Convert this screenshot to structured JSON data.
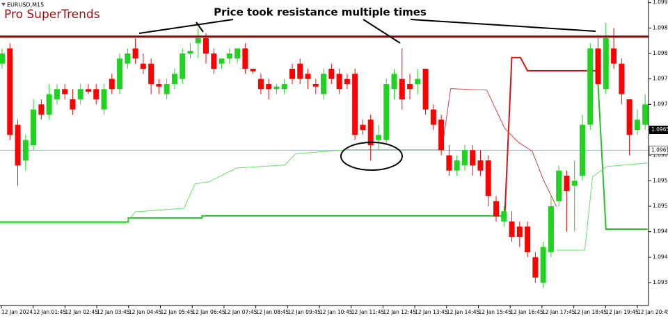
{
  "chart_data": {
    "type": "candlestick",
    "header": "EURUSD,M15",
    "title": "Pro SuperTrends",
    "annotation": "Price took resistance multiple times",
    "up_color": "#21d321",
    "down_color": "#ff0000",
    "ylim": [
      1.09305,
      1.09905
    ],
    "yticks": [
      {
        "value": 1.099,
        "label": "1.0990"
      },
      1.0985,
      {
        "value": 1.098,
        "label": "1.0980"
      },
      1.0975,
      {
        "value": 1.097,
        "label": "1.0970"
      },
      1.0965,
      {
        "value": 1.096,
        "label": "1.0960"
      },
      1.0955,
      {
        "value": 1.095,
        "label": "1.0950"
      },
      1.0945,
      {
        "value": 1.094,
        "label": "1.0940"
      },
      1.0935
    ],
    "xticks": [
      "12 Jan 2024",
      "12 Jan 01:45",
      "12 Jan 02:45",
      "12 Jan 03:45",
      "12 Jan 04:45",
      "12 Jan 05:45",
      "12 Jan 06:45",
      "12 Jan 07:45",
      "12 Jan 08:45",
      "12 Jan 09:45",
      "12 Jan 10:45",
      "12 Jan 11:45",
      "12 Jan 12:45",
      "12 Jan 13:45",
      "12 Jan 14:45",
      "12 Jan 15:45",
      "12 Jan 16:45",
      "12 Jan 17:45",
      "12 Jan 18:45",
      "12 Jan 19:45",
      "12 Jan 20:45"
    ],
    "resistance": {
      "value": 1.09833,
      "color": "#8b0000"
    },
    "hline": {
      "value": 1.0961,
      "color": "#9fb4c0"
    },
    "current_price": 1.0965,
    "ohlc": [
      [
        1.0978,
        1.0981,
        1.0977,
        1.098
      ],
      [
        1.0981,
        1.0982,
        1.0963,
        1.0964
      ],
      [
        1.0966,
        1.0967,
        1.0954,
        1.0958
      ],
      [
        1.0959,
        1.0964,
        1.0957,
        1.0963
      ],
      [
        1.0962,
        1.0971,
        1.0961,
        1.0969
      ],
      [
        1.097,
        1.0971,
        1.0967,
        1.0968
      ],
      [
        1.0968,
        1.0974,
        1.0967,
        1.0972
      ],
      [
        1.0971,
        1.0974,
        1.097,
        1.0973
      ],
      [
        1.0973,
        1.0974,
        1.0971,
        1.0972
      ],
      [
        1.0971,
        1.0973,
        1.0968,
        1.0969
      ],
      [
        1.0971,
        1.0974,
        1.097,
        1.0973
      ],
      [
        1.0973,
        1.0974,
        1.0972,
        1.09725
      ],
      [
        1.0973,
        1.0974,
        1.097,
        1.0971
      ],
      [
        1.0969,
        1.0974,
        1.0968,
        1.0973
      ],
      [
        1.0975,
        1.0976,
        1.0972,
        1.0973
      ],
      [
        1.0973,
        1.098,
        1.0972,
        1.0979
      ],
      [
        1.0978,
        1.0981,
        1.0977,
        1.098
      ],
      [
        1.0981,
        1.0983,
        1.0978,
        1.0979
      ],
      [
        1.0978,
        1.098,
        1.0976,
        1.0977
      ],
      [
        1.0978,
        1.0979,
        1.0972,
        1.0974
      ],
      [
        1.0974,
        1.0975,
        1.0972,
        1.09735
      ],
      [
        1.0972,
        1.0975,
        1.0971,
        1.0974
      ],
      [
        1.0974,
        1.0977,
        1.0973,
        1.0976
      ],
      [
        1.0975,
        1.0981,
        1.0974,
        1.098
      ],
      [
        1.098,
        1.0982,
        1.0979,
        1.09805
      ],
      [
        1.0982,
        1.0985,
        1.0979,
        1.0983
      ],
      [
        1.0983,
        1.0984,
        1.0978,
        1.098
      ],
      [
        1.098,
        1.0981,
        1.0976,
        1.0977
      ],
      [
        1.0978,
        1.0979,
        1.0977,
        1.0979
      ],
      [
        1.0979,
        1.0981,
        1.0978,
        1.098
      ],
      [
        1.0979,
        1.0981,
        1.0978,
        1.0981
      ],
      [
        1.0981,
        1.0982,
        1.0976,
        1.0977
      ],
      [
        1.0977,
        1.0977,
        1.0976,
        1.09765
      ],
      [
        1.0975,
        1.0976,
        1.0972,
        1.0973
      ],
      [
        1.0974,
        1.0975,
        1.0971,
        1.0973
      ],
      [
        1.0973,
        1.0974,
        1.0972,
        1.09735
      ],
      [
        1.0973,
        1.0975,
        1.0972,
        1.0974
      ],
      [
        1.0977,
        1.0978,
        1.0974,
        1.0975
      ],
      [
        1.0978,
        1.0979,
        1.0974,
        1.0975
      ],
      [
        1.0976,
        1.0977,
        1.0973,
        1.0975
      ],
      [
        1.0974,
        1.0975,
        1.0972,
        1.09735
      ],
      [
        1.0972,
        1.0977,
        1.0971,
        1.0976
      ],
      [
        1.0977,
        1.0978,
        1.0974,
        1.0975
      ],
      [
        1.0976,
        1.0977,
        1.0972,
        1.0973
      ],
      [
        1.0975,
        1.0976,
        1.0973,
        1.0974
      ],
      [
        1.0976,
        1.0977,
        1.0963,
        1.0964
      ],
      [
        1.0966,
        1.0967,
        1.0964,
        1.0965
      ],
      [
        1.0967,
        1.0968,
        1.0959,
        1.0962
      ],
      [
        1.0963,
        1.0966,
        1.0961,
        1.0964
      ],
      [
        1.0963,
        1.0975,
        1.0962,
        1.0974
      ],
      [
        1.0973,
        1.0977,
        1.0971,
        1.0976
      ],
      [
        1.0975,
        1.0981,
        1.0969,
        1.0971
      ],
      [
        1.0974,
        1.0976,
        1.0971,
        1.0973
      ],
      [
        1.0974,
        1.0977,
        1.0972,
        1.0975
      ],
      [
        1.0977,
        1.0977,
        1.0968,
        1.0969
      ],
      [
        1.0969,
        1.097,
        1.0965,
        1.0966
      ],
      [
        1.0967,
        1.0968,
        1.096,
        1.0961
      ],
      [
        1.096,
        1.0962,
        1.0956,
        1.0957
      ],
      [
        1.0957,
        1.096,
        1.0956,
        1.0959
      ],
      [
        1.0958,
        1.0962,
        1.0957,
        1.0961
      ],
      [
        1.0961,
        1.0962,
        1.0956,
        1.0958
      ],
      [
        1.0959,
        1.0961,
        1.0956,
        1.0957
      ],
      [
        1.0959,
        1.096,
        1.095,
        1.0952
      ],
      [
        1.0951,
        1.0952,
        1.0947,
        1.0948
      ],
      [
        1.0947,
        1.095,
        1.0946,
        1.0949
      ],
      [
        1.0947,
        1.0949,
        1.0943,
        1.0944
      ],
      [
        1.0946,
        1.0947,
        1.0942,
        1.0944
      ],
      [
        1.0946,
        1.0947,
        1.094,
        1.0941
      ],
      [
        1.094,
        1.0941,
        1.0935,
        1.0936
      ],
      [
        1.0935,
        1.0943,
        1.0934,
        1.0942
      ],
      [
        1.0941,
        1.0952,
        1.094,
        1.095
      ],
      [
        1.0951,
        1.0958,
        1.095,
        1.0957
      ],
      [
        1.0956,
        1.0957,
        1.0945,
        1.0953
      ],
      [
        1.0954,
        1.0959,
        1.0945,
        1.0955
      ],
      [
        1.0956,
        1.0968,
        1.0955,
        1.0966
      ],
      [
        1.0966,
        1.0982,
        1.0965,
        1.0981
      ],
      [
        1.0981,
        1.0983,
        1.0974,
        1.0974
      ],
      [
        1.0973,
        1.0986,
        1.0972,
        1.0983
      ],
      [
        1.0981,
        1.0985,
        1.0977,
        1.0978
      ],
      [
        1.0978,
        1.0979,
        1.097,
        1.0972
      ],
      [
        1.0971,
        1.0971,
        1.096,
        1.0964
      ],
      [
        1.0965,
        1.0969,
        1.0964,
        1.0967
      ],
      [
        1.0966,
        1.0972,
        1.0965,
        1.097
      ]
    ],
    "lines": [
      {
        "color": "#22c322",
        "width": 2,
        "x": [
          -0.27,
          16.1,
          16.1,
          25.5,
          25.5,
          64.1
        ],
        "values": [
          1.09469,
          1.09469,
          1.09477,
          1.09477,
          1.09481,
          1.09481
        ]
      },
      {
        "color": "#dd1010",
        "width": 2,
        "x": [
          64.1,
          65.0,
          66.1,
          67.0,
          75.9
        ],
        "values": [
          1.09481,
          1.09792,
          1.09792,
          1.09766,
          1.09766
        ]
      },
      {
        "color": "#22c322",
        "width": 2,
        "x": [
          75.9,
          77.0,
          82.3
        ],
        "values": [
          1.09766,
          1.09455,
          1.09455
        ]
      },
      {
        "color": "#66e066",
        "width": 1,
        "x": [
          -0.27,
          15.7,
          17.0,
          23.2,
          24.6,
          26.4,
          29.9,
          36.1,
          37.4,
          44.1,
          56.1
        ],
        "values": [
          1.09466,
          1.09466,
          1.09489,
          1.09496,
          1.09544,
          1.09548,
          1.09575,
          1.09581,
          1.09603,
          1.09611,
          1.09611
        ]
      },
      {
        "color": "#d04040",
        "width": 1,
        "x": [
          56.1,
          57.2,
          61.8,
          64.1,
          65.8,
          67.6,
          69.0,
          70.7
        ],
        "values": [
          1.09611,
          1.09731,
          1.09728,
          1.09653,
          1.09626,
          1.09608,
          1.09553,
          1.09499
        ]
      },
      {
        "color": "#66e066",
        "width": 1,
        "x": [
          70.7,
          74.3,
          75.3,
          77.1,
          82.3
        ],
        "values": [
          1.09414,
          1.09414,
          1.09558,
          1.09578,
          1.09585
        ]
      }
    ]
  }
}
